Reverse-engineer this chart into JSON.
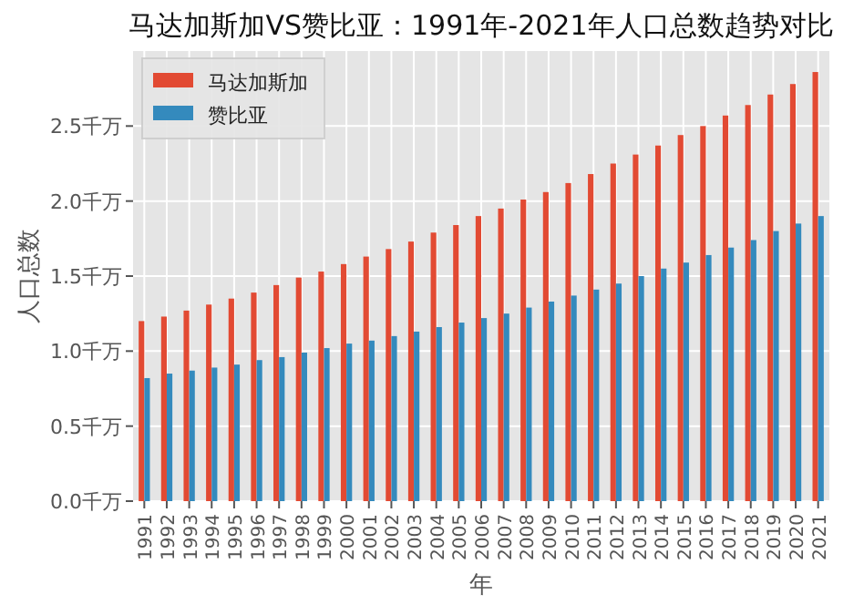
{
  "chart_data": {
    "type": "bar",
    "title": "马达加斯加VS赞比亚：1991年-2021年人口总数趋势对比",
    "xlabel": "年",
    "ylabel": "人口总数",
    "categories": [
      "1991",
      "1992",
      "1993",
      "1994",
      "1995",
      "1996",
      "1997",
      "1998",
      "1999",
      "2000",
      "2001",
      "2002",
      "2003",
      "2004",
      "2005",
      "2006",
      "2007",
      "2008",
      "2009",
      "2010",
      "2011",
      "2012",
      "2013",
      "2014",
      "2015",
      "2016",
      "2017",
      "2018",
      "2019",
      "2020",
      "2021"
    ],
    "series": [
      {
        "name": "马达加斯加",
        "color": "#e24a33",
        "values": [
          1.2,
          1.23,
          1.27,
          1.31,
          1.35,
          1.39,
          1.44,
          1.49,
          1.53,
          1.58,
          1.63,
          1.68,
          1.73,
          1.79,
          1.84,
          1.9,
          1.95,
          2.01,
          2.06,
          2.12,
          2.18,
          2.25,
          2.31,
          2.37,
          2.44,
          2.5,
          2.57,
          2.64,
          2.71,
          2.78,
          2.86
        ]
      },
      {
        "name": "赞比亚",
        "color": "#348abd",
        "values": [
          0.82,
          0.85,
          0.87,
          0.89,
          0.91,
          0.94,
          0.96,
          0.99,
          1.02,
          1.05,
          1.07,
          1.1,
          1.13,
          1.16,
          1.19,
          1.22,
          1.25,
          1.29,
          1.33,
          1.37,
          1.41,
          1.45,
          1.5,
          1.55,
          1.59,
          1.64,
          1.69,
          1.74,
          1.8,
          1.85,
          1.9
        ]
      }
    ],
    "ylim": [
      0,
      3.0
    ],
    "yticks": [
      {
        "value": 0,
        "label": "0.0千万"
      },
      {
        "value": 0.5,
        "label": "0.5千万"
      },
      {
        "value": 1.0,
        "label": "1.0千万"
      },
      {
        "value": 1.5,
        "label": "1.5千万"
      },
      {
        "value": 2.0,
        "label": "2.0千万"
      },
      {
        "value": 2.5,
        "label": "2.5千万"
      }
    ],
    "grid": true,
    "legend": "top left"
  }
}
